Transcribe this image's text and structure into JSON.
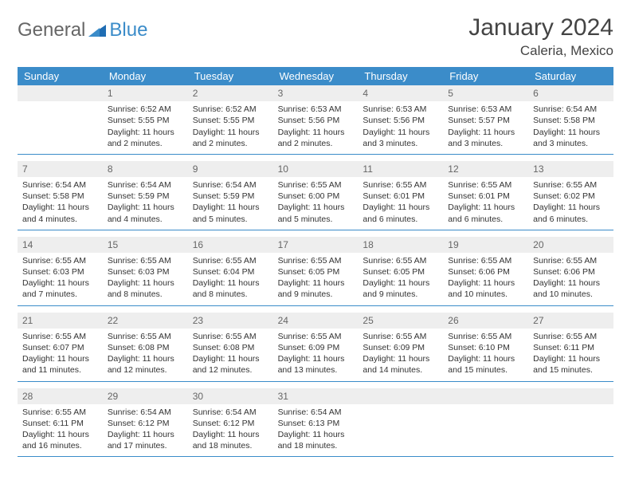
{
  "brand": {
    "part1": "General",
    "part2": "Blue"
  },
  "header": {
    "title": "January 2024",
    "location": "Caleria, Mexico"
  },
  "colors": {
    "accent": "#3b8cc9",
    "daybg": "#eeeeee",
    "text": "#333333"
  },
  "days": [
    "Sunday",
    "Monday",
    "Tuesday",
    "Wednesday",
    "Thursday",
    "Friday",
    "Saturday"
  ],
  "weeks": [
    [
      {
        "n": "",
        "empty": true
      },
      {
        "n": "1",
        "sunrise": "Sunrise: 6:52 AM",
        "sunset": "Sunset: 5:55 PM",
        "day": "Daylight: 11 hours and 2 minutes."
      },
      {
        "n": "2",
        "sunrise": "Sunrise: 6:52 AM",
        "sunset": "Sunset: 5:55 PM",
        "day": "Daylight: 11 hours and 2 minutes."
      },
      {
        "n": "3",
        "sunrise": "Sunrise: 6:53 AM",
        "sunset": "Sunset: 5:56 PM",
        "day": "Daylight: 11 hours and 2 minutes."
      },
      {
        "n": "4",
        "sunrise": "Sunrise: 6:53 AM",
        "sunset": "Sunset: 5:56 PM",
        "day": "Daylight: 11 hours and 3 minutes."
      },
      {
        "n": "5",
        "sunrise": "Sunrise: 6:53 AM",
        "sunset": "Sunset: 5:57 PM",
        "day": "Daylight: 11 hours and 3 minutes."
      },
      {
        "n": "6",
        "sunrise": "Sunrise: 6:54 AM",
        "sunset": "Sunset: 5:58 PM",
        "day": "Daylight: 11 hours and 3 minutes."
      }
    ],
    [
      {
        "n": "7",
        "sunrise": "Sunrise: 6:54 AM",
        "sunset": "Sunset: 5:58 PM",
        "day": "Daylight: 11 hours and 4 minutes."
      },
      {
        "n": "8",
        "sunrise": "Sunrise: 6:54 AM",
        "sunset": "Sunset: 5:59 PM",
        "day": "Daylight: 11 hours and 4 minutes."
      },
      {
        "n": "9",
        "sunrise": "Sunrise: 6:54 AM",
        "sunset": "Sunset: 5:59 PM",
        "day": "Daylight: 11 hours and 5 minutes."
      },
      {
        "n": "10",
        "sunrise": "Sunrise: 6:55 AM",
        "sunset": "Sunset: 6:00 PM",
        "day": "Daylight: 11 hours and 5 minutes."
      },
      {
        "n": "11",
        "sunrise": "Sunrise: 6:55 AM",
        "sunset": "Sunset: 6:01 PM",
        "day": "Daylight: 11 hours and 6 minutes."
      },
      {
        "n": "12",
        "sunrise": "Sunrise: 6:55 AM",
        "sunset": "Sunset: 6:01 PM",
        "day": "Daylight: 11 hours and 6 minutes."
      },
      {
        "n": "13",
        "sunrise": "Sunrise: 6:55 AM",
        "sunset": "Sunset: 6:02 PM",
        "day": "Daylight: 11 hours and 6 minutes."
      }
    ],
    [
      {
        "n": "14",
        "sunrise": "Sunrise: 6:55 AM",
        "sunset": "Sunset: 6:03 PM",
        "day": "Daylight: 11 hours and 7 minutes."
      },
      {
        "n": "15",
        "sunrise": "Sunrise: 6:55 AM",
        "sunset": "Sunset: 6:03 PM",
        "day": "Daylight: 11 hours and 8 minutes."
      },
      {
        "n": "16",
        "sunrise": "Sunrise: 6:55 AM",
        "sunset": "Sunset: 6:04 PM",
        "day": "Daylight: 11 hours and 8 minutes."
      },
      {
        "n": "17",
        "sunrise": "Sunrise: 6:55 AM",
        "sunset": "Sunset: 6:05 PM",
        "day": "Daylight: 11 hours and 9 minutes."
      },
      {
        "n": "18",
        "sunrise": "Sunrise: 6:55 AM",
        "sunset": "Sunset: 6:05 PM",
        "day": "Daylight: 11 hours and 9 minutes."
      },
      {
        "n": "19",
        "sunrise": "Sunrise: 6:55 AM",
        "sunset": "Sunset: 6:06 PM",
        "day": "Daylight: 11 hours and 10 minutes."
      },
      {
        "n": "20",
        "sunrise": "Sunrise: 6:55 AM",
        "sunset": "Sunset: 6:06 PM",
        "day": "Daylight: 11 hours and 10 minutes."
      }
    ],
    [
      {
        "n": "21",
        "sunrise": "Sunrise: 6:55 AM",
        "sunset": "Sunset: 6:07 PM",
        "day": "Daylight: 11 hours and 11 minutes."
      },
      {
        "n": "22",
        "sunrise": "Sunrise: 6:55 AM",
        "sunset": "Sunset: 6:08 PM",
        "day": "Daylight: 11 hours and 12 minutes."
      },
      {
        "n": "23",
        "sunrise": "Sunrise: 6:55 AM",
        "sunset": "Sunset: 6:08 PM",
        "day": "Daylight: 11 hours and 12 minutes."
      },
      {
        "n": "24",
        "sunrise": "Sunrise: 6:55 AM",
        "sunset": "Sunset: 6:09 PM",
        "day": "Daylight: 11 hours and 13 minutes."
      },
      {
        "n": "25",
        "sunrise": "Sunrise: 6:55 AM",
        "sunset": "Sunset: 6:09 PM",
        "day": "Daylight: 11 hours and 14 minutes."
      },
      {
        "n": "26",
        "sunrise": "Sunrise: 6:55 AM",
        "sunset": "Sunset: 6:10 PM",
        "day": "Daylight: 11 hours and 15 minutes."
      },
      {
        "n": "27",
        "sunrise": "Sunrise: 6:55 AM",
        "sunset": "Sunset: 6:11 PM",
        "day": "Daylight: 11 hours and 15 minutes."
      }
    ],
    [
      {
        "n": "28",
        "sunrise": "Sunrise: 6:55 AM",
        "sunset": "Sunset: 6:11 PM",
        "day": "Daylight: 11 hours and 16 minutes."
      },
      {
        "n": "29",
        "sunrise": "Sunrise: 6:54 AM",
        "sunset": "Sunset: 6:12 PM",
        "day": "Daylight: 11 hours and 17 minutes."
      },
      {
        "n": "30",
        "sunrise": "Sunrise: 6:54 AM",
        "sunset": "Sunset: 6:12 PM",
        "day": "Daylight: 11 hours and 18 minutes."
      },
      {
        "n": "31",
        "sunrise": "Sunrise: 6:54 AM",
        "sunset": "Sunset: 6:13 PM",
        "day": "Daylight: 11 hours and 18 minutes."
      },
      {
        "n": "",
        "empty": true
      },
      {
        "n": "",
        "empty": true
      },
      {
        "n": "",
        "empty": true
      }
    ]
  ]
}
